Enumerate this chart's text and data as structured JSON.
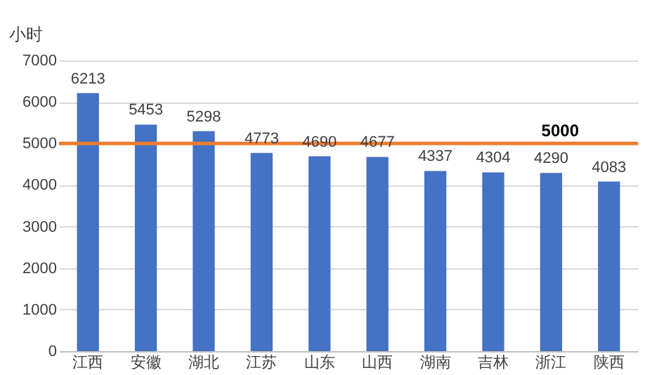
{
  "chart_data": {
    "type": "bar",
    "ylabel": "小时",
    "categories": [
      "江西",
      "安徽",
      "湖北",
      "江苏",
      "山东",
      "山西",
      "湖南",
      "吉林",
      "浙江",
      "陕西"
    ],
    "values": [
      6213,
      5453,
      5298,
      4773,
      4690,
      4677,
      4337,
      4304,
      4290,
      4083
    ],
    "color": "#4472c4",
    "data_labels": true,
    "ylim": [
      0,
      7000
    ],
    "yticks": [
      0,
      1000,
      2000,
      3000,
      4000,
      5000,
      6000,
      7000
    ],
    "grid": "y",
    "ref_lines": [
      {
        "axis": "y",
        "value": 5000,
        "label": "5000",
        "color": "#ed7d31"
      }
    ]
  }
}
